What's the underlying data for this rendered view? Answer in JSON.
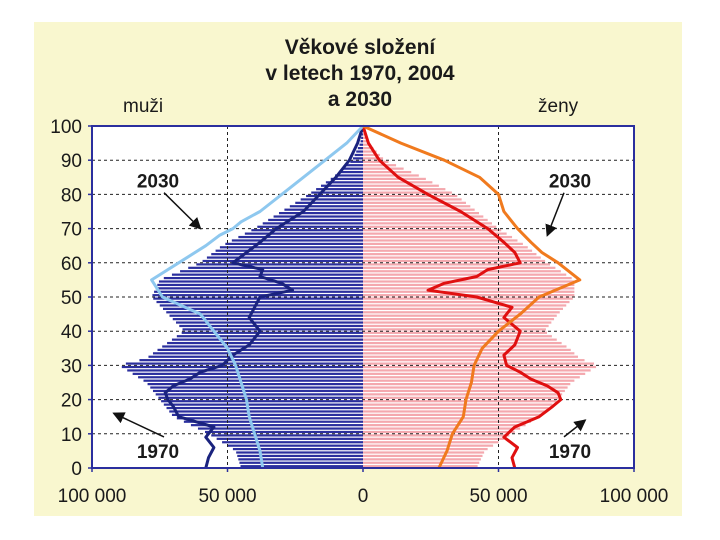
{
  "chart_data": {
    "type": "population-pyramid",
    "title": [
      "Věkové složení",
      "v letech 1970, 2004",
      "a 2030"
    ],
    "left_label": "muži",
    "right_label": "ženy",
    "y_ticks": [
      0,
      10,
      20,
      30,
      40,
      50,
      60,
      70,
      80,
      90,
      100
    ],
    "x_tick_labels": [
      "100 000",
      "50 000",
      "0",
      "50 000",
      "100 000"
    ],
    "x_tick_values": [
      -100000,
      -50000,
      0,
      50000,
      100000
    ],
    "xlim": [
      -100000,
      100000
    ],
    "ylim": [
      0,
      100
    ],
    "grid": "dashed",
    "annotations": [
      {
        "text": "2030",
        "side": "left",
        "label_age": 84,
        "target_value": -60000,
        "target_age": 70
      },
      {
        "text": "1970",
        "side": "left",
        "label_age": 5,
        "target_value": -92000,
        "target_age": 16
      },
      {
        "text": "2030",
        "side": "right",
        "label_age": 84,
        "target_value": 68000,
        "target_age": 68
      },
      {
        "text": "1970",
        "side": "right",
        "label_age": 5,
        "target_value": 82000,
        "target_age": 14
      }
    ],
    "series": [
      {
        "name": "2004 muži",
        "kind": "bars",
        "color": "#2b2f9e",
        "ages": [
          0,
          5,
          10,
          15,
          20,
          25,
          30,
          32,
          35,
          40,
          45,
          50,
          55,
          60,
          65,
          70,
          75,
          80,
          85,
          90,
          95,
          100
        ],
        "values": [
          -45000,
          -47000,
          -57000,
          -70000,
          -75000,
          -80000,
          -90000,
          -80000,
          -75000,
          -66000,
          -72000,
          -78000,
          -75000,
          -60000,
          -52000,
          -40000,
          -30000,
          -20000,
          -11000,
          -4000,
          -1000,
          0
        ]
      },
      {
        "name": "2004 ženy",
        "kind": "bars",
        "color": "#f4a8ae",
        "ages": [
          0,
          5,
          10,
          15,
          20,
          25,
          30,
          32,
          35,
          40,
          45,
          50,
          55,
          60,
          65,
          70,
          75,
          80,
          85,
          90,
          95,
          100
        ],
        "values": [
          42000,
          45000,
          55000,
          65000,
          72000,
          77000,
          87000,
          80000,
          76000,
          67000,
          72000,
          78000,
          78000,
          68000,
          60000,
          50000,
          42000,
          34000,
          22000,
          8000,
          2000,
          0
        ]
      },
      {
        "name": "1970 muži",
        "kind": "line",
        "color": "#1a237e",
        "ages": [
          0,
          3,
          6,
          9,
          12,
          15,
          18,
          20,
          22,
          24,
          26,
          28,
          30,
          33,
          36,
          40,
          44,
          47,
          50,
          52,
          54,
          56,
          58,
          60,
          63,
          66,
          70,
          75,
          80,
          85,
          90,
          95,
          100
        ],
        "values": [
          -58000,
          -57000,
          -55000,
          -58000,
          -55000,
          -68000,
          -70000,
          -72000,
          -73000,
          -70000,
          -64000,
          -60000,
          -52000,
          -48000,
          -42000,
          -38000,
          -42000,
          -40000,
          -38000,
          -26000,
          -30000,
          -38000,
          -37000,
          -48000,
          -43000,
          -38000,
          -32000,
          -22000,
          -16000,
          -10000,
          -5000,
          -2000,
          0
        ]
      },
      {
        "name": "1970 ženy",
        "kind": "line",
        "color": "#e01010",
        "ages": [
          0,
          3,
          6,
          9,
          12,
          15,
          18,
          20,
          22,
          24,
          26,
          28,
          30,
          33,
          36,
          40,
          44,
          47,
          50,
          52,
          54,
          56,
          58,
          60,
          63,
          66,
          70,
          75,
          80,
          85,
          90,
          95,
          100
        ],
        "values": [
          56000,
          55000,
          57000,
          52000,
          56000,
          65000,
          70000,
          73000,
          72000,
          68000,
          62000,
          58000,
          53000,
          52000,
          56000,
          58000,
          52000,
          55000,
          42000,
          24000,
          30000,
          42000,
          46000,
          58000,
          56000,
          52000,
          46000,
          36000,
          24000,
          13000,
          6000,
          2000,
          0
        ]
      },
      {
        "name": "2030 muži",
        "kind": "line",
        "color": "#8ec8ef",
        "ages": [
          0,
          5,
          10,
          15,
          20,
          25,
          30,
          35,
          40,
          45,
          50,
          55,
          60,
          65,
          68,
          70,
          72,
          75,
          80,
          85,
          90,
          95,
          100
        ],
        "values": [
          -37000,
          -38000,
          -40000,
          -42000,
          -43000,
          -45000,
          -47000,
          -50000,
          -55000,
          -60000,
          -74000,
          -78000,
          -68000,
          -58000,
          -53000,
          -48000,
          -45000,
          -38000,
          -30000,
          -22000,
          -14000,
          -6000,
          0
        ]
      },
      {
        "name": "2030 ženy",
        "kind": "line",
        "color": "#f07a1e",
        "ages": [
          0,
          5,
          10,
          15,
          20,
          25,
          30,
          35,
          40,
          45,
          50,
          55,
          60,
          63,
          66,
          70,
          75,
          80,
          85,
          90,
          95,
          100
        ],
        "values": [
          28000,
          31000,
          33000,
          37000,
          38000,
          40000,
          41000,
          44000,
          50000,
          58000,
          65000,
          80000,
          72000,
          66000,
          62000,
          57000,
          52000,
          50000,
          43000,
          30000,
          14000,
          0
        ]
      }
    ]
  }
}
